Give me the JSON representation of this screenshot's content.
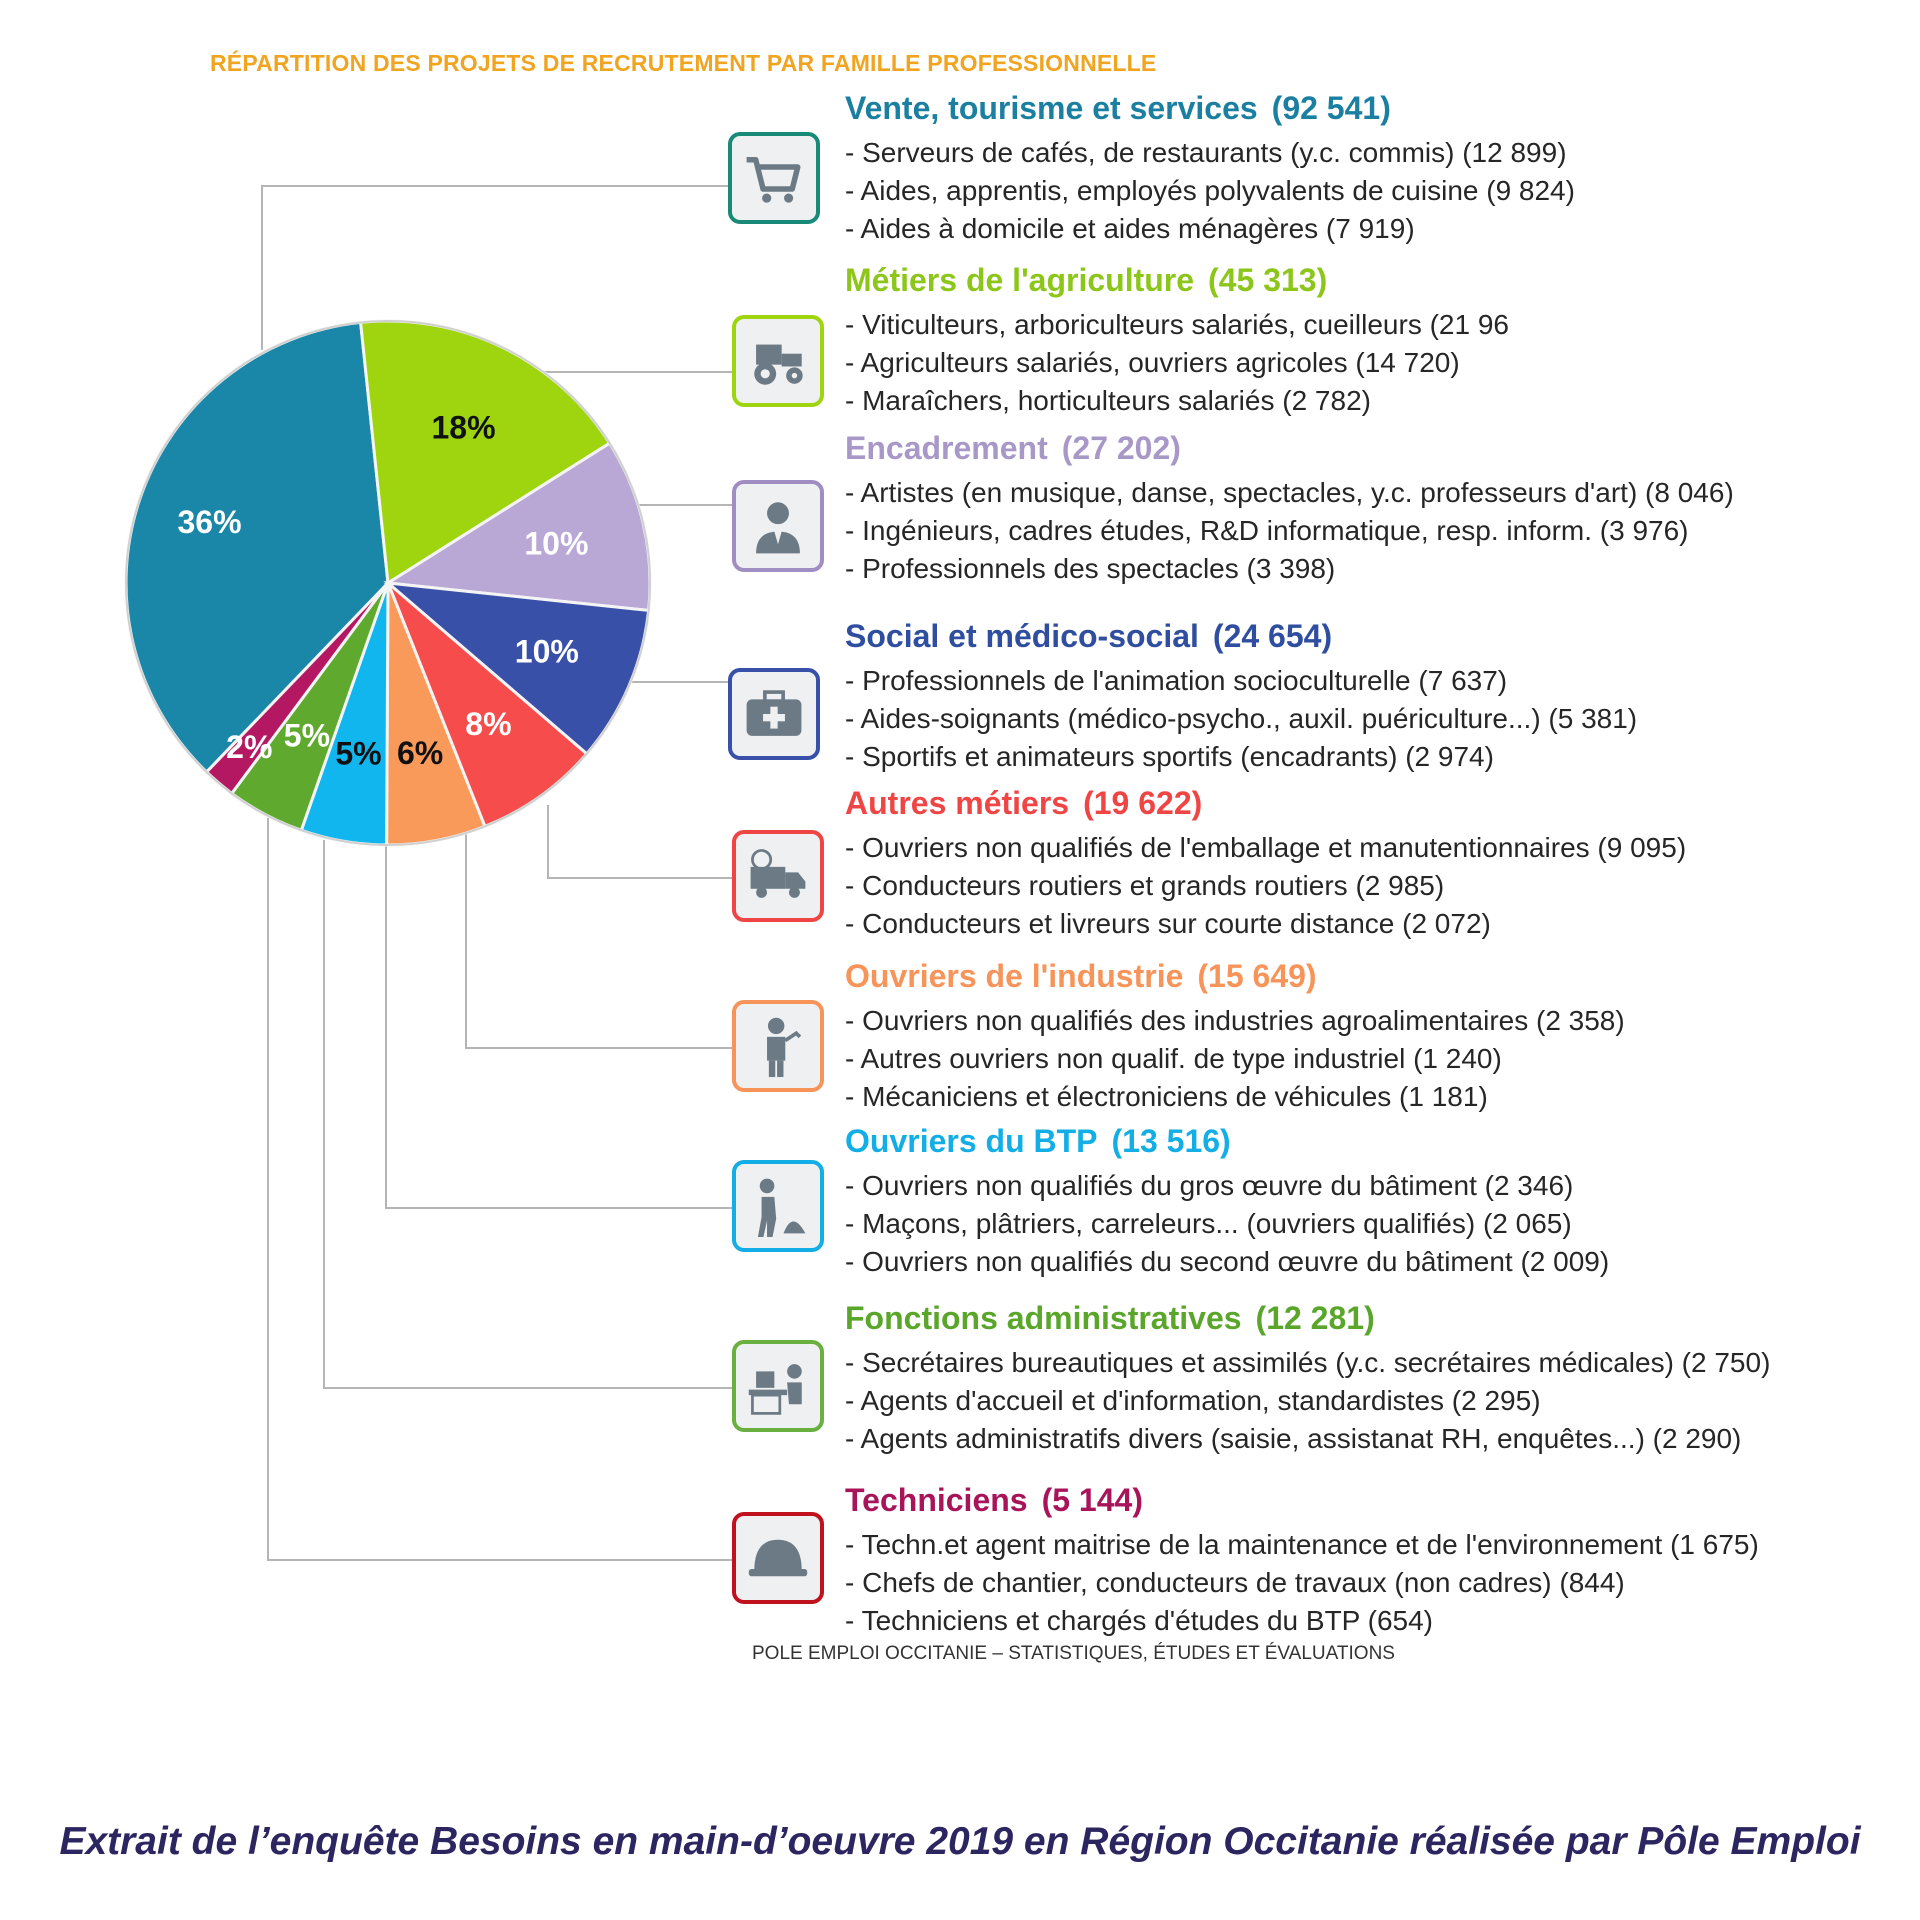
{
  "header": {
    "title": "RÉPARTITION DES PROJETS DE RECRUTEMENT PAR FAMILLE PROFESSIONNELLE"
  },
  "footer": {
    "source": "POLE EMPLOI OCCITANIE – STATISTIQUES, ÉTUDES ET ÉVALUATIONS",
    "caption": "Extrait de l’enquête Besoins en main-d’oeuvre 2019 en Région Occitanie réalisée par Pôle Emploi"
  },
  "chart_data": {
    "type": "pie",
    "title": "RÉPARTITION DES PROJETS DE RECRUTEMENT PAR FAMILLE PROFESSIONNELLE",
    "legend": "right",
    "slices": [
      {
        "label": "Vente, tourisme et services",
        "value": 92541,
        "pct_label": "36%",
        "color": "#1a86a8",
        "label_color": "#ffffff"
      },
      {
        "label": "Métiers de l'agriculture",
        "value": 45313,
        "pct_label": "18%",
        "color": "#9ed50f",
        "label_color": "#111111"
      },
      {
        "label": "Encadrement",
        "value": 27202,
        "pct_label": "10%",
        "color": "#b9a7d6",
        "label_color": "#ffffff"
      },
      {
        "label": "Social et médico-social",
        "value": 24654,
        "pct_label": "10%",
        "color": "#3850a8",
        "label_color": "#ffffff"
      },
      {
        "label": "Autres métiers",
        "value": 19622,
        "pct_label": "8%",
        "color": "#f74c4c",
        "label_color": "#ffffff"
      },
      {
        "label": "Ouvriers de l'industrie",
        "value": 15649,
        "pct_label": "6%",
        "color": "#f99a5a",
        "label_color": "#111111"
      },
      {
        "label": "Ouvriers du BTP",
        "value": 13516,
        "pct_label": "5%",
        "color": "#12b6ee",
        "label_color": "#111111"
      },
      {
        "label": "Fonctions administratives",
        "value": 12281,
        "pct_label": "5%",
        "color": "#5fa92e",
        "label_color": "#ffffff"
      },
      {
        "label": "Techniciens",
        "value": 5144,
        "pct_label": "2%",
        "color": "#b51862",
        "label_color": "#ffffff"
      }
    ]
  },
  "categories": [
    {
      "name": "Vente, tourisme et services",
      "count": "(92 541)",
      "color": "#1a7fa0",
      "icon": "shopping-cart-icon",
      "icon_border": "#1a8a78",
      "items": [
        "- Serveurs de cafés, de restaurants (y.c. commis) (12 899)",
        "- Aides, apprentis, employés polyvalents de cuisine (9 824)",
        "- Aides à domicile et aides ménagères (7 919)"
      ]
    },
    {
      "name": "Métiers de l'agriculture",
      "count": "(45 313)",
      "color": "#8cc61a",
      "icon": "tractor-icon",
      "icon_border": "#9ed50f",
      "items": [
        "- Viticulteurs, arboriculteurs salariés, cueilleurs (21 96",
        "- Agriculteurs salariés, ouvriers agricoles (14 720)",
        "- Maraîchers, horticulteurs salariés (2 782)"
      ]
    },
    {
      "name": "Encadrement",
      "count": "(27 202)",
      "color": "#a898c8",
      "icon": "manager-icon",
      "icon_border": "#a08ec2",
      "items": [
        "- Artistes (en musique, danse, spectacles, y.c. professeurs d'art) (8 046)",
        "- Ingénieurs, cadres études, R&D informatique, resp. inform. (3 976)",
        "- Professionnels des spectacles (3 398)"
      ]
    },
    {
      "name": "Social et médico-social",
      "count": "(24 654)",
      "color": "#2f4ea0",
      "icon": "medical-kit-icon",
      "icon_border": "#3850a8",
      "items": [
        "- Professionnels de l'animation socioculturelle (7 637)",
        "- Aides-soignants (médico-psycho., auxil. puériculture...) (5 381)",
        "- Sportifs et animateurs sportifs (encadrants) (2 974)"
      ]
    },
    {
      "name": "Autres métiers",
      "count": "(19 622)",
      "color": "#f04545",
      "icon": "delivery-truck-icon",
      "icon_border": "#f04545",
      "items": [
        "- Ouvriers non qualifiés de l'emballage et manutentionnaires (9 095)",
        "- Conducteurs routiers et grands routiers (2 985)",
        "- Conducteurs et livreurs sur courte distance (2 072)"
      ]
    },
    {
      "name": "Ouvriers de l'industrie",
      "count": "(15 649)",
      "color": "#f7945a",
      "icon": "welder-icon",
      "icon_border": "#f7945a",
      "items": [
        "- Ouvriers non qualifiés des industries agroalimentaires (2 358)",
        "- Autres ouvriers non qualif. de type industriel  (1 240)",
        "- Mécaniciens et électroniciens de véhicules (1 181)"
      ]
    },
    {
      "name": "Ouvriers du BTP",
      "count": "(13 516)",
      "color": "#14aee6",
      "icon": "construction-worker-icon",
      "icon_border": "#14aee6",
      "items": [
        "- Ouvriers non qualifiés du gros œuvre du bâtiment (2 346)",
        "- Maçons, plâtriers, carreleurs... (ouvriers qualifiés) (2 065)",
        "- Ouvriers non qualifiés du second œuvre du bâtiment (2 009)"
      ]
    },
    {
      "name": "Fonctions administratives",
      "count": "(12 281)",
      "color": "#5aa62b",
      "icon": "office-worker-icon",
      "icon_border": "#6ab040",
      "items": [
        "- Secrétaires bureautiques et assimilés (y.c. secrétaires médicales) (2 750)",
        "- Agents d'accueil et d'information, standardistes (2 295)",
        "- Agents administratifs divers (saisie, assistanat RH, enquêtes...) (2 290)"
      ]
    },
    {
      "name": "Techniciens",
      "count": "(5 144)",
      "color": "#a8145a",
      "icon": "hard-hat-icon",
      "icon_border": "#c0121e",
      "items": [
        "- Techn.et agent maitrise  de la maintenance et de l'environnement (1 675)",
        "- Chefs de chantier, conducteurs de travaux (non cadres) (844)",
        "- Techniciens et chargés d'études du BTP (654)"
      ]
    }
  ]
}
